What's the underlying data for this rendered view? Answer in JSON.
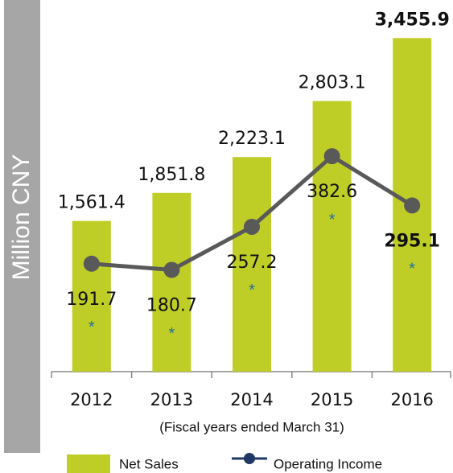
{
  "chart_data": {
    "type": "bar",
    "y_label": "Million CNY",
    "x_label": "(Fiscal years ended March 31)",
    "categories": [
      "2012",
      "2013",
      "2014",
      "2015",
      "2016"
    ],
    "series": [
      {
        "name": "Net Sales",
        "type": "bar",
        "color": "#bfce26",
        "values": [
          1561.4,
          1851.8,
          2223.1,
          2803.1,
          3455.9
        ],
        "value_labels": [
          "1,561.4",
          "1,851.8",
          "2,223.1",
          "2,803.1",
          "3,455.9"
        ]
      },
      {
        "name": "Operating Income",
        "type": "line",
        "axis": "y2",
        "color": "#595959",
        "legend_color": "#1f3864",
        "values": [
          191.7,
          180.7,
          257.2,
          382.6,
          295.1
        ],
        "value_notes": [
          "*",
          "*",
          "*",
          "*",
          "*"
        ]
      }
    ],
    "ylim": [
      0,
      3500
    ],
    "y2lim": [
      0,
      600
    ],
    "highlight_last": true
  }
}
